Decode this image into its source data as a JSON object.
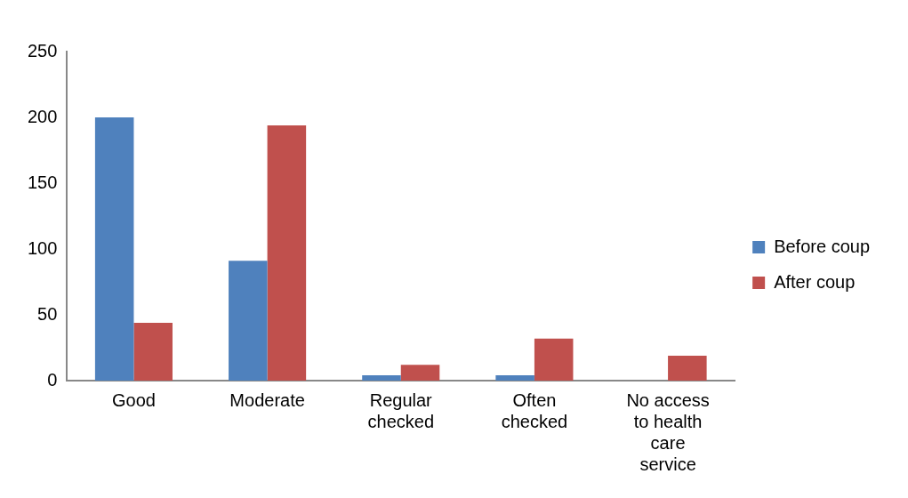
{
  "chart_data": {
    "type": "bar",
    "categories": [
      "Good",
      "Moderate",
      "Regular checked",
      "Often checked",
      "No access to health care service"
    ],
    "series": [
      {
        "name": "Before coup",
        "color": "#4f81bd",
        "values": [
          200,
          91,
          4,
          4,
          0
        ]
      },
      {
        "name": "After coup",
        "color": "#c0504d",
        "values": [
          44,
          194,
          12,
          32,
          19
        ]
      }
    ],
    "ylim": [
      0,
      250
    ],
    "yticks": [
      0,
      50,
      100,
      150,
      200,
      250
    ],
    "grid": false,
    "legend": "right"
  }
}
